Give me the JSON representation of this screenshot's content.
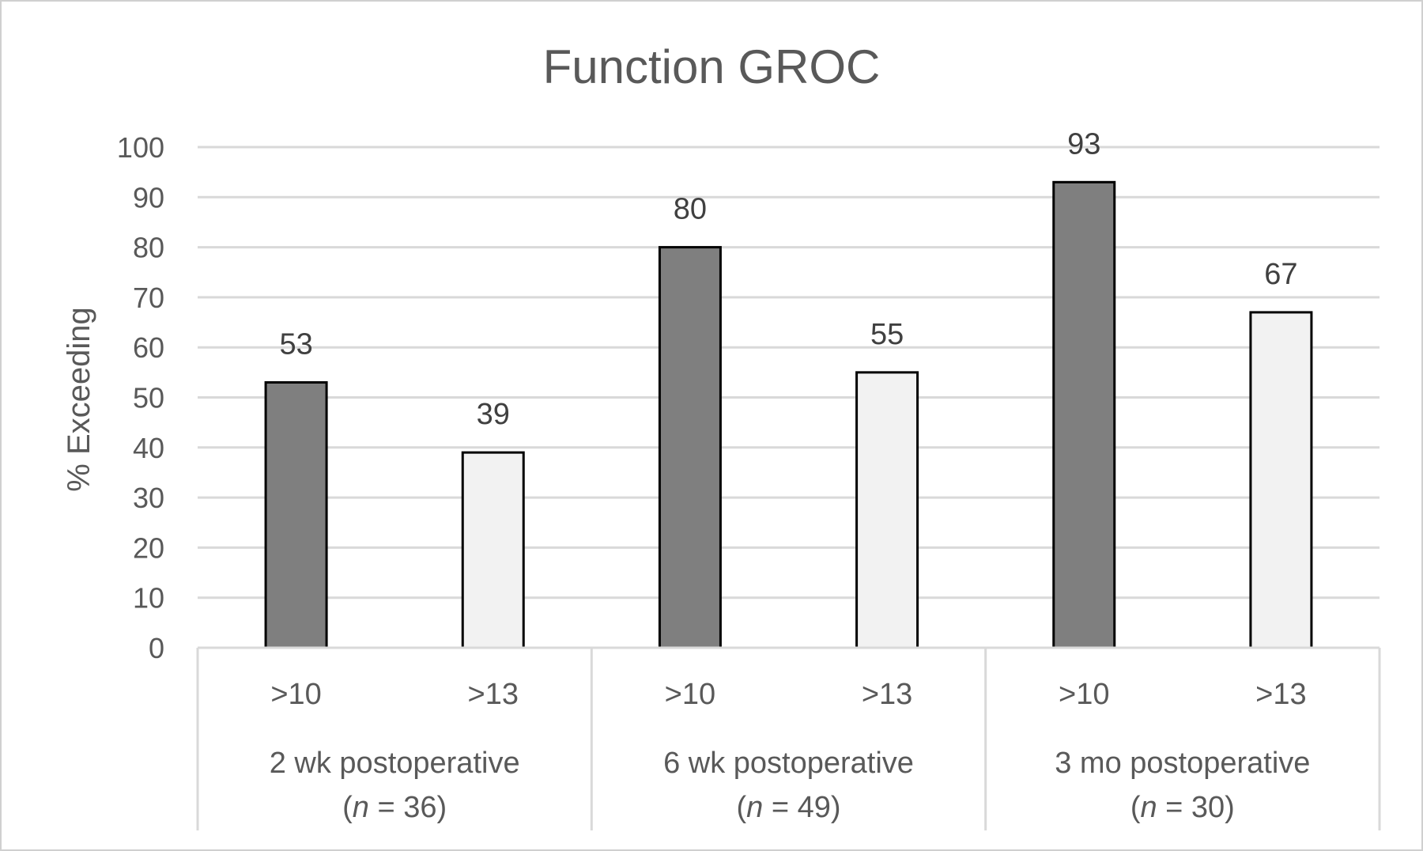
{
  "chart_data": {
    "type": "bar",
    "title": "Function GROC",
    "ylabel": "% Exceeding",
    "xlabel": "",
    "ylim": [
      0,
      100
    ],
    "yticks": [
      0,
      10,
      20,
      30,
      40,
      50,
      60,
      70,
      80,
      90,
      100
    ],
    "grid": true,
    "groups": [
      {
        "label": "2 wk postoperative",
        "n_prefix": "(",
        "n_italic": "n",
        "n_suffix": " = 36)",
        "bars": [
          {
            "category": ">10",
            "value": 53,
            "color": "#7f7f7f"
          },
          {
            "category": ">13",
            "value": 39,
            "color": "#f2f2f2"
          }
        ]
      },
      {
        "label": "6 wk postoperative",
        "n_prefix": "(",
        "n_italic": "n",
        "n_suffix": " = 49)",
        "bars": [
          {
            "category": ">10",
            "value": 80,
            "color": "#7f7f7f"
          },
          {
            "category": ">13",
            "value": 55,
            "color": "#f2f2f2"
          }
        ]
      },
      {
        "label": "3 mo postoperative",
        "n_prefix": "(",
        "n_italic": "n",
        "n_suffix": " = 30)",
        "bars": [
          {
            "category": ">10",
            "value": 93,
            "color": "#7f7f7f"
          },
          {
            "category": ">13",
            "value": 67,
            "color": "#f2f2f2"
          }
        ]
      }
    ]
  }
}
